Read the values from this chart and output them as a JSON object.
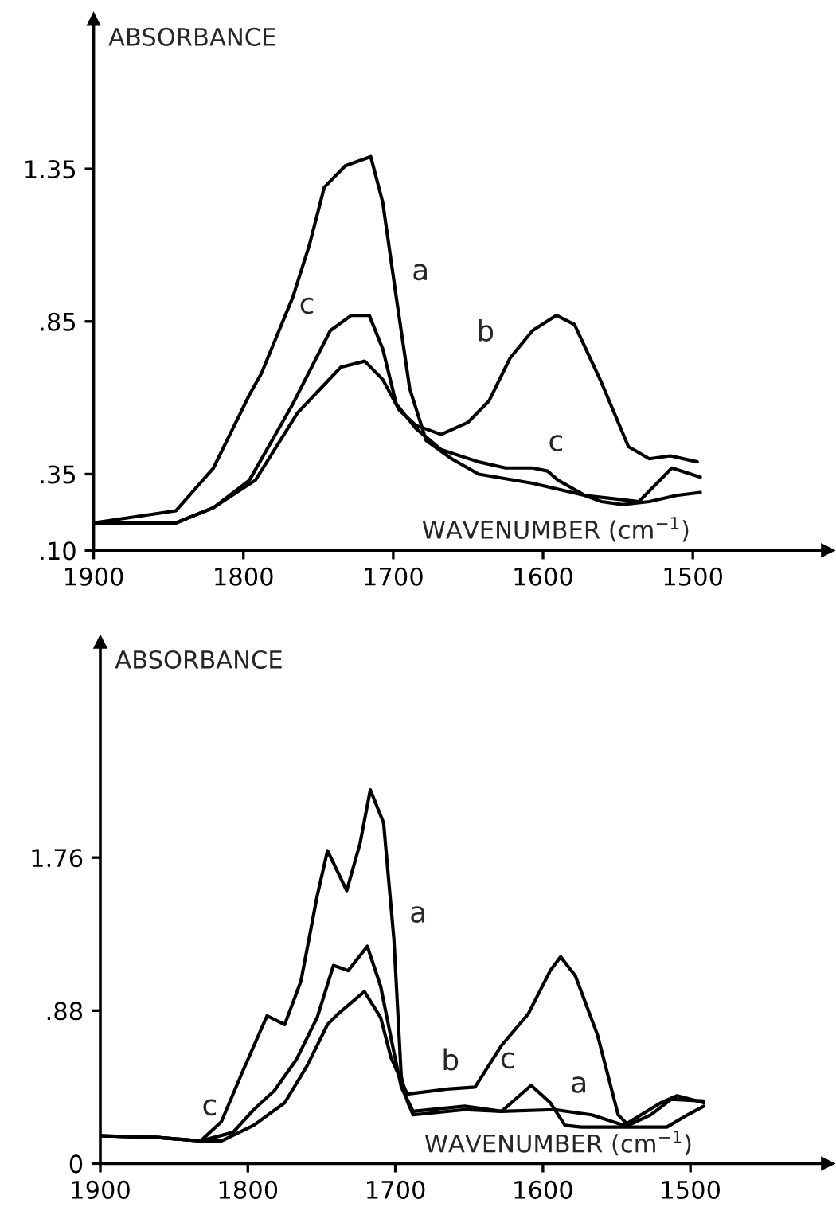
{
  "chart_data": [
    {
      "type": "line",
      "xlabel": "WAVENUMBER (cm$^{−1}$)",
      "ylabel": "ABSORBANCE",
      "xlim": [
        1900,
        1410
      ],
      "ylim": [
        0.1,
        1.84
      ],
      "xticks": [
        1900,
        1800,
        1700,
        1600,
        1500
      ],
      "yticks": [
        {
          "value": 0.1,
          "label": ".10"
        },
        {
          "value": 0.35,
          "label": ".35"
        },
        {
          "value": 0.85,
          "label": ".85"
        },
        {
          "value": 1.35,
          "label": "1.35"
        }
      ],
      "grid": false,
      "legend": false,
      "marker": "none",
      "line_style": "solid",
      "series": [
        {
          "color": "#000000",
          "x": [
            1900,
            1845,
            1820,
            1796,
            1788,
            1767,
            1756,
            1746,
            1732,
            1715,
            1707,
            1698,
            1689,
            1678,
            1661,
            1643,
            1607,
            1572,
            1561,
            1547,
            1529,
            1511,
            1495
          ],
          "values": [
            0.19,
            0.23,
            0.37,
            0.61,
            0.68,
            0.93,
            1.1,
            1.29,
            1.36,
            1.39,
            1.24,
            0.93,
            0.63,
            0.46,
            0.4,
            0.35,
            0.32,
            0.28,
            0.26,
            0.25,
            0.26,
            0.28,
            0.29
          ]
        },
        {
          "color": "#000000",
          "x": [
            1900,
            1845,
            1820,
            1792,
            1764,
            1735,
            1719,
            1707,
            1696,
            1685,
            1668,
            1650,
            1636,
            1622,
            1607,
            1591,
            1579,
            1561,
            1543,
            1529,
            1515,
            1497
          ],
          "values": [
            0.19,
            0.19,
            0.24,
            0.33,
            0.55,
            0.7,
            0.72,
            0.66,
            0.56,
            0.51,
            0.48,
            0.52,
            0.59,
            0.73,
            0.82,
            0.87,
            0.84,
            0.65,
            0.44,
            0.4,
            0.41,
            0.39
          ]
        },
        {
          "color": "#000000",
          "x": [
            1900,
            1845,
            1820,
            1796,
            1767,
            1742,
            1728,
            1716,
            1707,
            1698,
            1685,
            1668,
            1643,
            1625,
            1607,
            1597,
            1590,
            1572,
            1554,
            1536,
            1514,
            1495
          ],
          "values": [
            0.19,
            0.19,
            0.24,
            0.33,
            0.58,
            0.82,
            0.87,
            0.87,
            0.76,
            0.58,
            0.5,
            0.43,
            0.39,
            0.37,
            0.37,
            0.36,
            0.33,
            0.28,
            0.27,
            0.26,
            0.37,
            0.34
          ]
        }
      ],
      "annotations": [
        {
          "text": "a",
          "x": 1698,
          "y": 0.93
        },
        {
          "text": "c",
          "x": 1742,
          "y": 0.82
        },
        {
          "text": "b",
          "x": 1622,
          "y": 0.73
        },
        {
          "text": "c",
          "x": 1607,
          "y": 0.37
        }
      ]
    },
    {
      "type": "line",
      "xlabel": "WAVENUMBER (cm$^{−1}$)",
      "ylabel": "ABSORBANCE",
      "xlim": [
        1900,
        1407
      ],
      "ylim": [
        0,
        3.0
      ],
      "xticks": [
        1900,
        1800,
        1700,
        1600,
        1500
      ],
      "yticks": [
        0,
        {
          "value": 0.88,
          "label": ".88"
        },
        {
          "value": 1.76,
          "label": "1.76"
        }
      ],
      "grid": false,
      "legend": false,
      "marker": "none",
      "line_style": "solid",
      "series": [
        {
          "color": "#000000",
          "x": [
            1900,
            1861,
            1832,
            1818,
            1803,
            1787,
            1775,
            1764,
            1753,
            1746,
            1733,
            1724,
            1717,
            1708,
            1701,
            1696,
            1692,
            1688,
            1653,
            1628,
            1592,
            1567,
            1545,
            1520,
            1509,
            1491
          ],
          "values": [
            0.16,
            0.15,
            0.13,
            0.24,
            0.54,
            0.85,
            0.8,
            1.05,
            1.54,
            1.8,
            1.57,
            1.84,
            2.15,
            1.96,
            1.29,
            0.5,
            0.36,
            0.28,
            0.31,
            0.3,
            0.31,
            0.28,
            0.22,
            0.35,
            0.39,
            0.35
          ]
        },
        {
          "color": "#000000",
          "x": [
            1900,
            1861,
            1832,
            1818,
            1796,
            1775,
            1760,
            1746,
            1739,
            1721,
            1710,
            1703,
            1692,
            1663,
            1646,
            1628,
            1610,
            1595,
            1588,
            1578,
            1563,
            1549,
            1542,
            1527,
            1513,
            1491
          ],
          "values": [
            0.16,
            0.15,
            0.13,
            0.13,
            0.22,
            0.35,
            0.56,
            0.8,
            0.86,
            0.99,
            0.84,
            0.61,
            0.4,
            0.43,
            0.44,
            0.68,
            0.86,
            1.11,
            1.19,
            1.08,
            0.74,
            0.28,
            0.22,
            0.28,
            0.37,
            0.36
          ]
        },
        {
          "color": "#000000",
          "x": [
            1900,
            1861,
            1832,
            1810,
            1796,
            1782,
            1767,
            1753,
            1742,
            1732,
            1719,
            1710,
            1701,
            1696,
            1688,
            1653,
            1628,
            1608,
            1595,
            1585,
            1574,
            1538,
            1516,
            1502,
            1491
          ],
          "values": [
            0.16,
            0.15,
            0.13,
            0.18,
            0.31,
            0.42,
            0.6,
            0.84,
            1.14,
            1.11,
            1.25,
            1.02,
            0.64,
            0.44,
            0.3,
            0.33,
            0.3,
            0.45,
            0.35,
            0.22,
            0.21,
            0.21,
            0.21,
            0.28,
            0.33
          ]
        }
      ],
      "annotations": [
        {
          "text": "a",
          "x": 1701,
          "y": 1.29
        },
        {
          "text": "b",
          "x": 1646,
          "y": 0.44
        },
        {
          "text": "c",
          "x": 1810,
          "y": 0.18
        },
        {
          "text": "c",
          "x": 1608,
          "y": 0.45
        },
        {
          "text": "a",
          "x": 1592,
          "y": 0.31
        }
      ]
    }
  ]
}
